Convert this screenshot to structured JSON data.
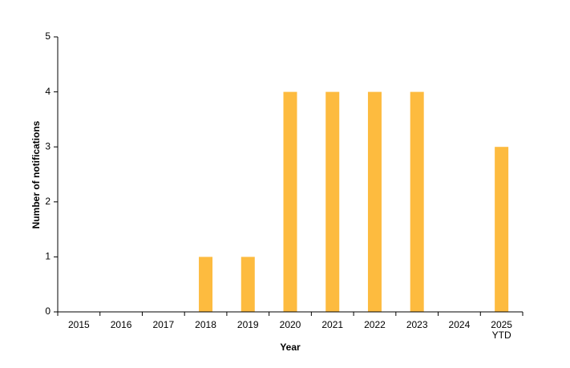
{
  "chart_data": {
    "type": "bar",
    "x_label": "Year",
    "y_label": "Number of notifications",
    "categories": [
      "2015",
      "2016",
      "2017",
      "2018",
      "2019",
      "2020",
      "2021",
      "2022",
      "2023",
      "2024",
      "2025\nYTD"
    ],
    "values": [
      0,
      0,
      0,
      1,
      1,
      4,
      4,
      4,
      4,
      0,
      3
    ],
    "color": "#fdbb3f",
    "ylim": [
      0,
      5
    ],
    "yticks": [
      0,
      1,
      2,
      3,
      4,
      5
    ],
    "grid": false
  }
}
